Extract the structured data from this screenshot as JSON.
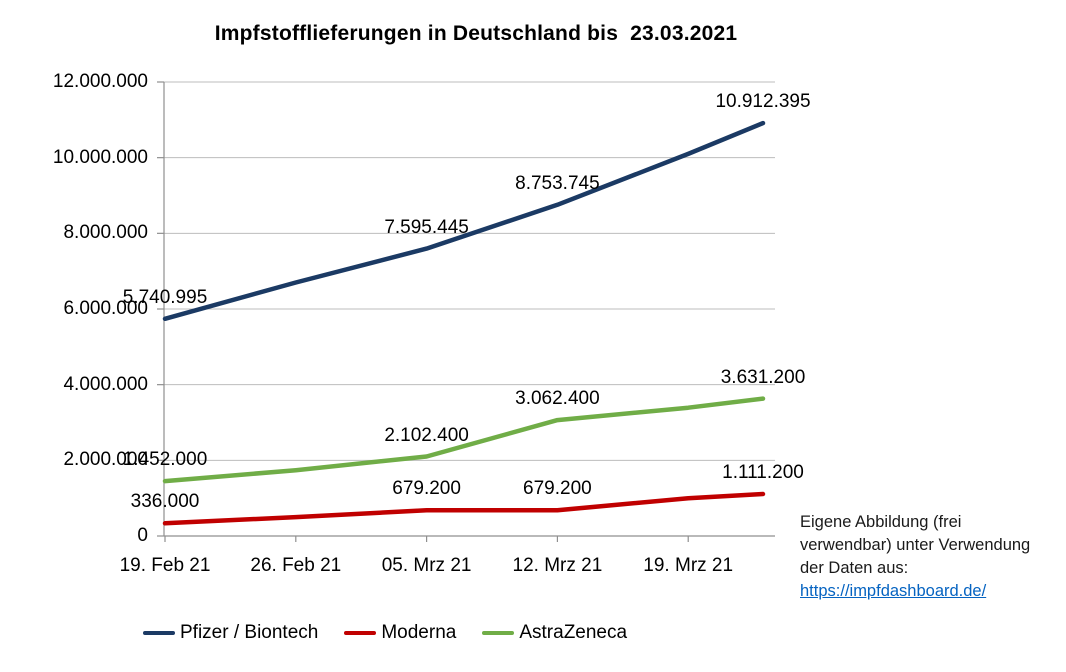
{
  "chart_data": {
    "type": "line",
    "title": "Impfstofflieferungen in Deutschland bis  23.03.2021",
    "xlabel": "",
    "ylabel": "",
    "ylim": [
      0,
      12000000
    ],
    "grid": "horizontal",
    "legend_position": "bottom",
    "y_ticks": [
      0,
      2000000,
      4000000,
      6000000,
      8000000,
      10000000,
      12000000
    ],
    "y_tick_labels": [
      "0",
      "2.000.000",
      "4.000.000",
      "6.000.000",
      "8.000.000",
      "10.000.000",
      "12.000.000"
    ],
    "x_tick_days": [
      0,
      7,
      14,
      21,
      28
    ],
    "x_tick_labels": [
      "19. Feb 21",
      "26. Feb 21",
      "05. Mrz 21",
      "12. Mrz 21",
      "19. Mrz 21"
    ],
    "series_x_days": [
      0,
      7,
      14,
      21,
      28,
      32
    ],
    "series": [
      {
        "name": "Pfizer / Biontech",
        "color": "#1b3a64",
        "values": [
          5740995,
          6700000,
          7595445,
          8753745,
          10100000,
          10912395
        ],
        "point_labels": [
          "5.740.995",
          null,
          "7.595.445",
          "8.753.745",
          null,
          "10.912.395"
        ]
      },
      {
        "name": "Moderna",
        "color": "#C00000",
        "values": [
          336000,
          500000,
          679200,
          679200,
          1000000,
          1111200
        ],
        "point_labels": [
          "336.000",
          null,
          "679.200",
          "679.200",
          null,
          "1.111.200"
        ]
      },
      {
        "name": "AstraZeneca",
        "color": "#70AD47",
        "values": [
          1452000,
          1740000,
          2102400,
          3062400,
          3390000,
          3631200
        ],
        "point_labels": [
          "1.452.000",
          null,
          "2.102.400",
          "3.062.400",
          null,
          "3.631.200"
        ]
      }
    ]
  },
  "annotation": {
    "text": "Eigene Abbildung (frei verwendbar) unter Verwendung der Daten aus:",
    "link_text": "https://impfdashboard.de/"
  },
  "colors": {
    "grid": "#bdbdbd",
    "axis": "#8f8f8f",
    "link": "#0563C1"
  }
}
